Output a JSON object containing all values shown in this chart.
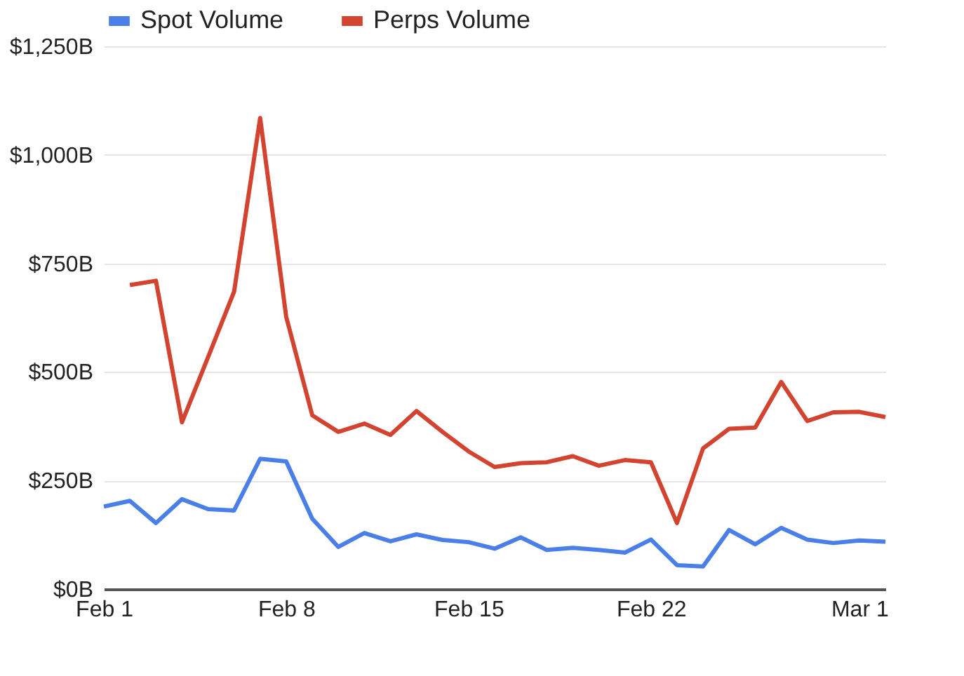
{
  "chart_data": {
    "type": "line",
    "x": [
      "--02-01",
      "--02-02",
      "--02-03",
      "--02-04",
      "--02-05",
      "--02-06",
      "--02-07",
      "--02-08",
      "--02-09",
      "--02-10",
      "--02-11",
      "--02-12",
      "--02-13",
      "--02-14",
      "--02-15",
      "--02-16",
      "--02-17",
      "--02-18",
      "--02-19",
      "--02-20",
      "--02-21",
      "--02-22",
      "--02-23",
      "--02-24",
      "--02-25",
      "--02-26",
      "--02-27",
      "--02-28",
      "--02-29",
      "--03-01",
      "--03-02"
    ],
    "series": [
      {
        "name": "Spot Volume",
        "color": "#4a7fe8",
        "values": [
          190,
          203,
          152,
          207,
          184,
          181,
          300,
          294,
          162,
          97,
          129,
          110,
          126,
          113,
          108,
          93,
          119,
          90,
          95,
          90,
          84,
          114,
          55,
          52,
          136,
          103,
          141,
          114,
          106,
          112,
          109
        ]
      },
      {
        "name": "Perps Volume",
        "color": "#d2442f",
        "values": [
          null,
          700,
          710,
          384,
          534,
          685,
          1085,
          627,
          400,
          362,
          381,
          355,
          410,
          362,
          317,
          281,
          290,
          292,
          306,
          284,
          297,
          292,
          152,
          324,
          369,
          372,
          477,
          387,
          407,
          408,
          396
        ]
      }
    ],
    "xlim": [
      "--02-01",
      "--03-02"
    ],
    "xticks": [
      {
        "value": "--02-01",
        "label": "Feb 1"
      },
      {
        "value": "--02-08",
        "label": "Feb 8"
      },
      {
        "value": "--02-15",
        "label": "Feb 15"
      },
      {
        "value": "--02-22",
        "label": "Feb 22"
      },
      {
        "value": "--03-01",
        "label": "Mar 1"
      }
    ],
    "ylim": [
      0,
      1250
    ],
    "yticks": [
      {
        "value": 0,
        "label": "$0B"
      },
      {
        "value": 250,
        "label": "$250B"
      },
      {
        "value": 500,
        "label": "$500B"
      },
      {
        "value": 750,
        "label": "$750B"
      },
      {
        "value": 1000,
        "label": "$1,000B"
      },
      {
        "value": 1250,
        "label": "$1,250B"
      }
    ],
    "grid": "y",
    "legend": "top",
    "marker": "none",
    "line_style": "solid"
  }
}
